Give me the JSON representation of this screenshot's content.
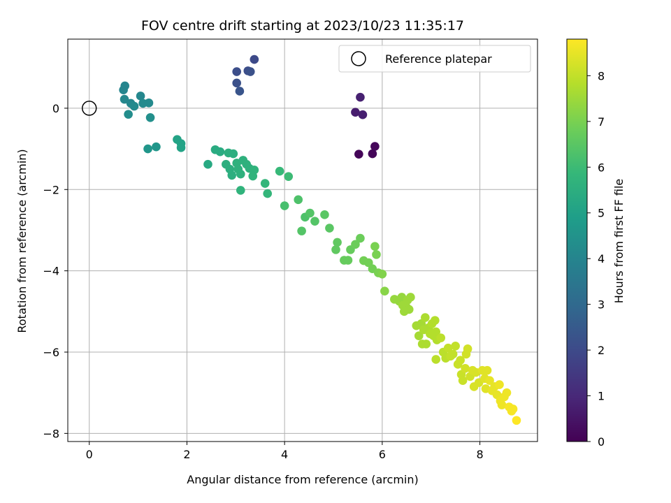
{
  "chart_data": {
    "type": "scatter",
    "title": "FOV centre drift starting at 2023/10/23 11:35:17",
    "xlabel": "Angular distance from reference (arcmin)",
    "ylabel": "Rotation from reference (arcmin)",
    "xlim": [
      -0.44,
      9.18
    ],
    "ylim": [
      -8.2,
      1.7
    ],
    "xticks": [
      0,
      2,
      4,
      6,
      8
    ],
    "xtick_labels": [
      "0",
      "2",
      "4",
      "6",
      "8"
    ],
    "yticks": [
      0,
      -2,
      -4,
      -6,
      -8
    ],
    "ytick_labels": [
      "0",
      "−2",
      "−4",
      "−6",
      "−8"
    ],
    "grid": true,
    "colormap": "viridis",
    "colorbar": {
      "label": "Hours from first FF file",
      "range": [
        0,
        8.8
      ],
      "ticks": [
        0,
        1,
        2,
        3,
        4,
        5,
        6,
        7,
        8
      ],
      "tick_labels": [
        "0",
        "1",
        "2",
        "3",
        "4",
        "5",
        "6",
        "7",
        "8"
      ]
    },
    "reference": {
      "name": "Reference platepar",
      "x": 0,
      "y": 0
    },
    "legend": {
      "position": "top-right",
      "entries": [
        "Reference platepar"
      ]
    },
    "points": [
      {
        "x": 5.52,
        "y": -1.13,
        "t": 0.1
      },
      {
        "x": 5.8,
        "y": -1.12,
        "t": 0.1
      },
      {
        "x": 5.85,
        "y": -0.94,
        "t": 0.15
      },
      {
        "x": 5.45,
        "y": -0.1,
        "t": 0.7
      },
      {
        "x": 5.6,
        "y": -0.16,
        "t": 0.75
      },
      {
        "x": 5.55,
        "y": 0.27,
        "t": 0.8
      },
      {
        "x": 3.38,
        "y": 1.2,
        "t": 2.0
      },
      {
        "x": 3.02,
        "y": 0.9,
        "t": 2.1
      },
      {
        "x": 3.25,
        "y": 0.92,
        "t": 2.1
      },
      {
        "x": 3.3,
        "y": 0.9,
        "t": 2.2
      },
      {
        "x": 3.02,
        "y": 0.62,
        "t": 2.2
      },
      {
        "x": 3.08,
        "y": 0.42,
        "t": 2.3
      },
      {
        "x": 0.73,
        "y": 0.55,
        "t": 4.0
      },
      {
        "x": 0.7,
        "y": 0.45,
        "t": 4.0
      },
      {
        "x": 0.72,
        "y": 0.22,
        "t": 4.1
      },
      {
        "x": 0.85,
        "y": 0.12,
        "t": 4.1
      },
      {
        "x": 0.92,
        "y": 0.05,
        "t": 4.2
      },
      {
        "x": 1.05,
        "y": 0.3,
        "t": 4.1
      },
      {
        "x": 1.1,
        "y": 0.12,
        "t": 4.2
      },
      {
        "x": 1.22,
        "y": 0.13,
        "t": 4.2
      },
      {
        "x": 0.8,
        "y": -0.15,
        "t": 4.3
      },
      {
        "x": 1.25,
        "y": -0.23,
        "t": 4.4
      },
      {
        "x": 1.2,
        "y": -1.0,
        "t": 4.6
      },
      {
        "x": 1.37,
        "y": -0.95,
        "t": 4.6
      },
      {
        "x": 1.8,
        "y": -0.77,
        "t": 5.1
      },
      {
        "x": 1.88,
        "y": -0.87,
        "t": 5.1
      },
      {
        "x": 1.88,
        "y": -0.97,
        "t": 5.1
      },
      {
        "x": 2.43,
        "y": -1.38,
        "t": 5.3
      },
      {
        "x": 2.58,
        "y": -1.02,
        "t": 5.4
      },
      {
        "x": 2.68,
        "y": -1.07,
        "t": 5.4
      },
      {
        "x": 2.85,
        "y": -1.1,
        "t": 5.5
      },
      {
        "x": 2.95,
        "y": -1.12,
        "t": 5.5
      },
      {
        "x": 2.8,
        "y": -1.38,
        "t": 5.5
      },
      {
        "x": 2.88,
        "y": -1.5,
        "t": 5.5
      },
      {
        "x": 2.92,
        "y": -1.65,
        "t": 5.5
      },
      {
        "x": 3.02,
        "y": -1.35,
        "t": 5.6
      },
      {
        "x": 3.05,
        "y": -1.5,
        "t": 5.6
      },
      {
        "x": 3.1,
        "y": -1.62,
        "t": 5.6
      },
      {
        "x": 3.15,
        "y": -1.28,
        "t": 5.6
      },
      {
        "x": 3.22,
        "y": -1.38,
        "t": 5.6
      },
      {
        "x": 3.28,
        "y": -1.48,
        "t": 5.6
      },
      {
        "x": 3.38,
        "y": -1.52,
        "t": 5.7
      },
      {
        "x": 3.35,
        "y": -1.67,
        "t": 5.7
      },
      {
        "x": 3.1,
        "y": -2.02,
        "t": 5.7
      },
      {
        "x": 3.6,
        "y": -1.85,
        "t": 5.8
      },
      {
        "x": 3.65,
        "y": -2.1,
        "t": 5.8
      },
      {
        "x": 3.9,
        "y": -1.55,
        "t": 5.9
      },
      {
        "x": 4.08,
        "y": -1.68,
        "t": 6.0
      },
      {
        "x": 4.0,
        "y": -2.4,
        "t": 6.2
      },
      {
        "x": 4.28,
        "y": -2.25,
        "t": 6.3
      },
      {
        "x": 4.42,
        "y": -2.68,
        "t": 6.3
      },
      {
        "x": 4.52,
        "y": -2.58,
        "t": 6.4
      },
      {
        "x": 4.62,
        "y": -2.78,
        "t": 6.4
      },
      {
        "x": 4.35,
        "y": -3.02,
        "t": 6.4
      },
      {
        "x": 4.82,
        "y": -2.62,
        "t": 6.5
      },
      {
        "x": 4.92,
        "y": -2.95,
        "t": 6.5
      },
      {
        "x": 5.08,
        "y": -3.3,
        "t": 6.6
      },
      {
        "x": 5.05,
        "y": -3.48,
        "t": 6.6
      },
      {
        "x": 5.22,
        "y": -3.74,
        "t": 6.7
      },
      {
        "x": 5.3,
        "y": -3.74,
        "t": 6.7
      },
      {
        "x": 5.35,
        "y": -3.48,
        "t": 6.7
      },
      {
        "x": 5.45,
        "y": -3.35,
        "t": 6.8
      },
      {
        "x": 5.55,
        "y": -3.2,
        "t": 6.8
      },
      {
        "x": 5.62,
        "y": -3.75,
        "t": 6.9
      },
      {
        "x": 5.72,
        "y": -3.8,
        "t": 6.9
      },
      {
        "x": 5.8,
        "y": -3.95,
        "t": 6.9
      },
      {
        "x": 5.85,
        "y": -3.4,
        "t": 7.0
      },
      {
        "x": 5.88,
        "y": -3.6,
        "t": 7.0
      },
      {
        "x": 5.92,
        "y": -4.05,
        "t": 7.0
      },
      {
        "x": 6.0,
        "y": -4.08,
        "t": 7.1
      },
      {
        "x": 6.05,
        "y": -4.5,
        "t": 7.2
      },
      {
        "x": 6.25,
        "y": -4.7,
        "t": 7.4
      },
      {
        "x": 6.35,
        "y": -4.75,
        "t": 7.4
      },
      {
        "x": 6.4,
        "y": -4.65,
        "t": 7.4
      },
      {
        "x": 6.42,
        "y": -4.85,
        "t": 7.5
      },
      {
        "x": 6.45,
        "y": -5.0,
        "t": 7.5
      },
      {
        "x": 6.5,
        "y": -4.9,
        "t": 7.5
      },
      {
        "x": 6.52,
        "y": -4.72,
        "t": 7.5
      },
      {
        "x": 6.55,
        "y": -4.95,
        "t": 7.5
      },
      {
        "x": 6.58,
        "y": -4.65,
        "t": 7.5
      },
      {
        "x": 6.7,
        "y": -5.35,
        "t": 7.6
      },
      {
        "x": 6.75,
        "y": -5.6,
        "t": 7.6
      },
      {
        "x": 6.8,
        "y": -5.3,
        "t": 7.6
      },
      {
        "x": 6.85,
        "y": -5.45,
        "t": 7.7
      },
      {
        "x": 6.88,
        "y": -5.15,
        "t": 7.7
      },
      {
        "x": 6.82,
        "y": -5.8,
        "t": 7.7
      },
      {
        "x": 6.9,
        "y": -5.8,
        "t": 7.7
      },
      {
        "x": 6.95,
        "y": -5.4,
        "t": 7.7
      },
      {
        "x": 6.98,
        "y": -5.55,
        "t": 7.8
      },
      {
        "x": 7.02,
        "y": -5.3,
        "t": 7.8
      },
      {
        "x": 7.05,
        "y": -5.6,
        "t": 7.8
      },
      {
        "x": 7.08,
        "y": -5.22,
        "t": 7.8
      },
      {
        "x": 7.1,
        "y": -5.5,
        "t": 7.8
      },
      {
        "x": 7.12,
        "y": -5.7,
        "t": 7.8
      },
      {
        "x": 7.1,
        "y": -6.18,
        "t": 7.9
      },
      {
        "x": 7.2,
        "y": -5.65,
        "t": 7.9
      },
      {
        "x": 7.25,
        "y": -6.0,
        "t": 7.9
      },
      {
        "x": 7.3,
        "y": -6.15,
        "t": 7.9
      },
      {
        "x": 7.35,
        "y": -5.9,
        "t": 8.0
      },
      {
        "x": 7.4,
        "y": -6.1,
        "t": 8.0
      },
      {
        "x": 7.45,
        "y": -6.05,
        "t": 8.0
      },
      {
        "x": 7.5,
        "y": -5.85,
        "t": 8.0
      },
      {
        "x": 7.55,
        "y": -6.3,
        "t": 8.1
      },
      {
        "x": 7.6,
        "y": -6.2,
        "t": 8.1
      },
      {
        "x": 7.62,
        "y": -6.55,
        "t": 8.1
      },
      {
        "x": 7.65,
        "y": -6.7,
        "t": 8.1
      },
      {
        "x": 7.7,
        "y": -6.4,
        "t": 8.2
      },
      {
        "x": 7.72,
        "y": -6.05,
        "t": 8.2
      },
      {
        "x": 7.75,
        "y": -5.92,
        "t": 8.2
      },
      {
        "x": 7.8,
        "y": -6.6,
        "t": 8.2
      },
      {
        "x": 7.85,
        "y": -6.45,
        "t": 8.3
      },
      {
        "x": 7.88,
        "y": -6.85,
        "t": 8.3
      },
      {
        "x": 7.92,
        "y": -6.5,
        "t": 8.3
      },
      {
        "x": 7.98,
        "y": -6.75,
        "t": 8.3
      },
      {
        "x": 8.05,
        "y": -6.45,
        "t": 8.4
      },
      {
        "x": 8.1,
        "y": -6.65,
        "t": 8.4
      },
      {
        "x": 8.12,
        "y": -6.9,
        "t": 8.4
      },
      {
        "x": 8.15,
        "y": -6.45,
        "t": 8.4
      },
      {
        "x": 8.2,
        "y": -6.7,
        "t": 8.5
      },
      {
        "x": 8.25,
        "y": -6.95,
        "t": 8.5
      },
      {
        "x": 8.3,
        "y": -6.85,
        "t": 8.5
      },
      {
        "x": 8.35,
        "y": -7.05,
        "t": 8.5
      },
      {
        "x": 8.4,
        "y": -6.8,
        "t": 8.6
      },
      {
        "x": 8.42,
        "y": -7.2,
        "t": 8.6
      },
      {
        "x": 8.45,
        "y": -7.3,
        "t": 8.6
      },
      {
        "x": 8.5,
        "y": -7.1,
        "t": 8.6
      },
      {
        "x": 8.55,
        "y": -7.0,
        "t": 8.6
      },
      {
        "x": 8.6,
        "y": -7.35,
        "t": 8.7
      },
      {
        "x": 8.65,
        "y": -7.45,
        "t": 8.7
      },
      {
        "x": 8.68,
        "y": -7.4,
        "t": 8.7
      },
      {
        "x": 8.75,
        "y": -7.68,
        "t": 8.8
      }
    ]
  }
}
